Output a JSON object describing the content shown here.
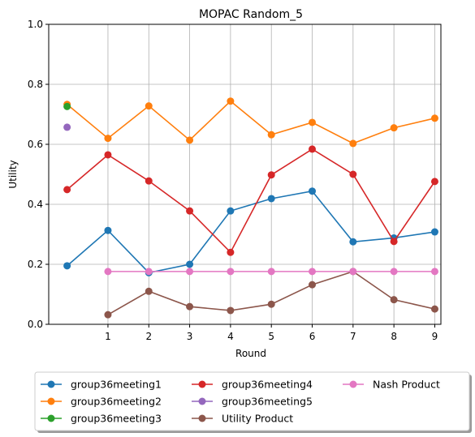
{
  "chart_data": {
    "type": "line",
    "title": "MOPAC Random_5",
    "xlabel": "Round",
    "ylabel": "Utility",
    "xlim": [
      -0.45,
      9.15
    ],
    "ylim": [
      0.0,
      1.0
    ],
    "xticks": [
      1,
      2,
      3,
      4,
      5,
      6,
      7,
      8,
      9
    ],
    "yticks": [
      0.0,
      0.2,
      0.4,
      0.6,
      0.8,
      1.0
    ],
    "ytick_labels": [
      "0.0",
      "0.2",
      "0.4",
      "0.6",
      "0.8",
      "1.0"
    ],
    "grid": true,
    "legend_position": "below",
    "series": [
      {
        "name": "group36meeting1",
        "color": "#1f77b4",
        "x": [
          0,
          1,
          2,
          3,
          4,
          5,
          6,
          7,
          8,
          9
        ],
        "y": [
          0.195,
          0.313,
          0.172,
          0.2,
          0.378,
          0.419,
          0.444,
          0.275,
          0.288,
          0.308
        ]
      },
      {
        "name": "group36meeting2",
        "color": "#ff7f0e",
        "x": [
          0,
          1,
          2,
          3,
          4,
          5,
          6,
          7,
          8,
          9
        ],
        "y": [
          0.733,
          0.62,
          0.728,
          0.614,
          0.744,
          0.632,
          0.673,
          0.603,
          0.655,
          0.687
        ]
      },
      {
        "name": "group36meeting3",
        "color": "#2ca02c",
        "x": [
          0
        ],
        "y": [
          0.726
        ]
      },
      {
        "name": "group36meeting4",
        "color": "#d62728",
        "x": [
          0,
          1,
          2,
          3,
          4,
          5,
          6,
          7,
          8,
          9
        ],
        "y": [
          0.449,
          0.565,
          0.478,
          0.378,
          0.24,
          0.498,
          0.584,
          0.5,
          0.276,
          0.476
        ]
      },
      {
        "name": "group36meeting5",
        "color": "#9467bd",
        "x": [
          0
        ],
        "y": [
          0.657
        ]
      },
      {
        "name": "Utility Product",
        "color": "#8c564b",
        "x": [
          1,
          2,
          3,
          4,
          5,
          6,
          7,
          8,
          9
        ],
        "y": [
          0.032,
          0.11,
          0.059,
          0.046,
          0.067,
          0.132,
          0.176,
          0.082,
          0.051
        ]
      },
      {
        "name": "Nash Product",
        "color": "#e377c2",
        "x": [
          1,
          2,
          3,
          4,
          5,
          6,
          7,
          8,
          9
        ],
        "y": [
          0.176,
          0.176,
          0.176,
          0.176,
          0.176,
          0.176,
          0.176,
          0.176,
          0.176
        ]
      }
    ]
  }
}
